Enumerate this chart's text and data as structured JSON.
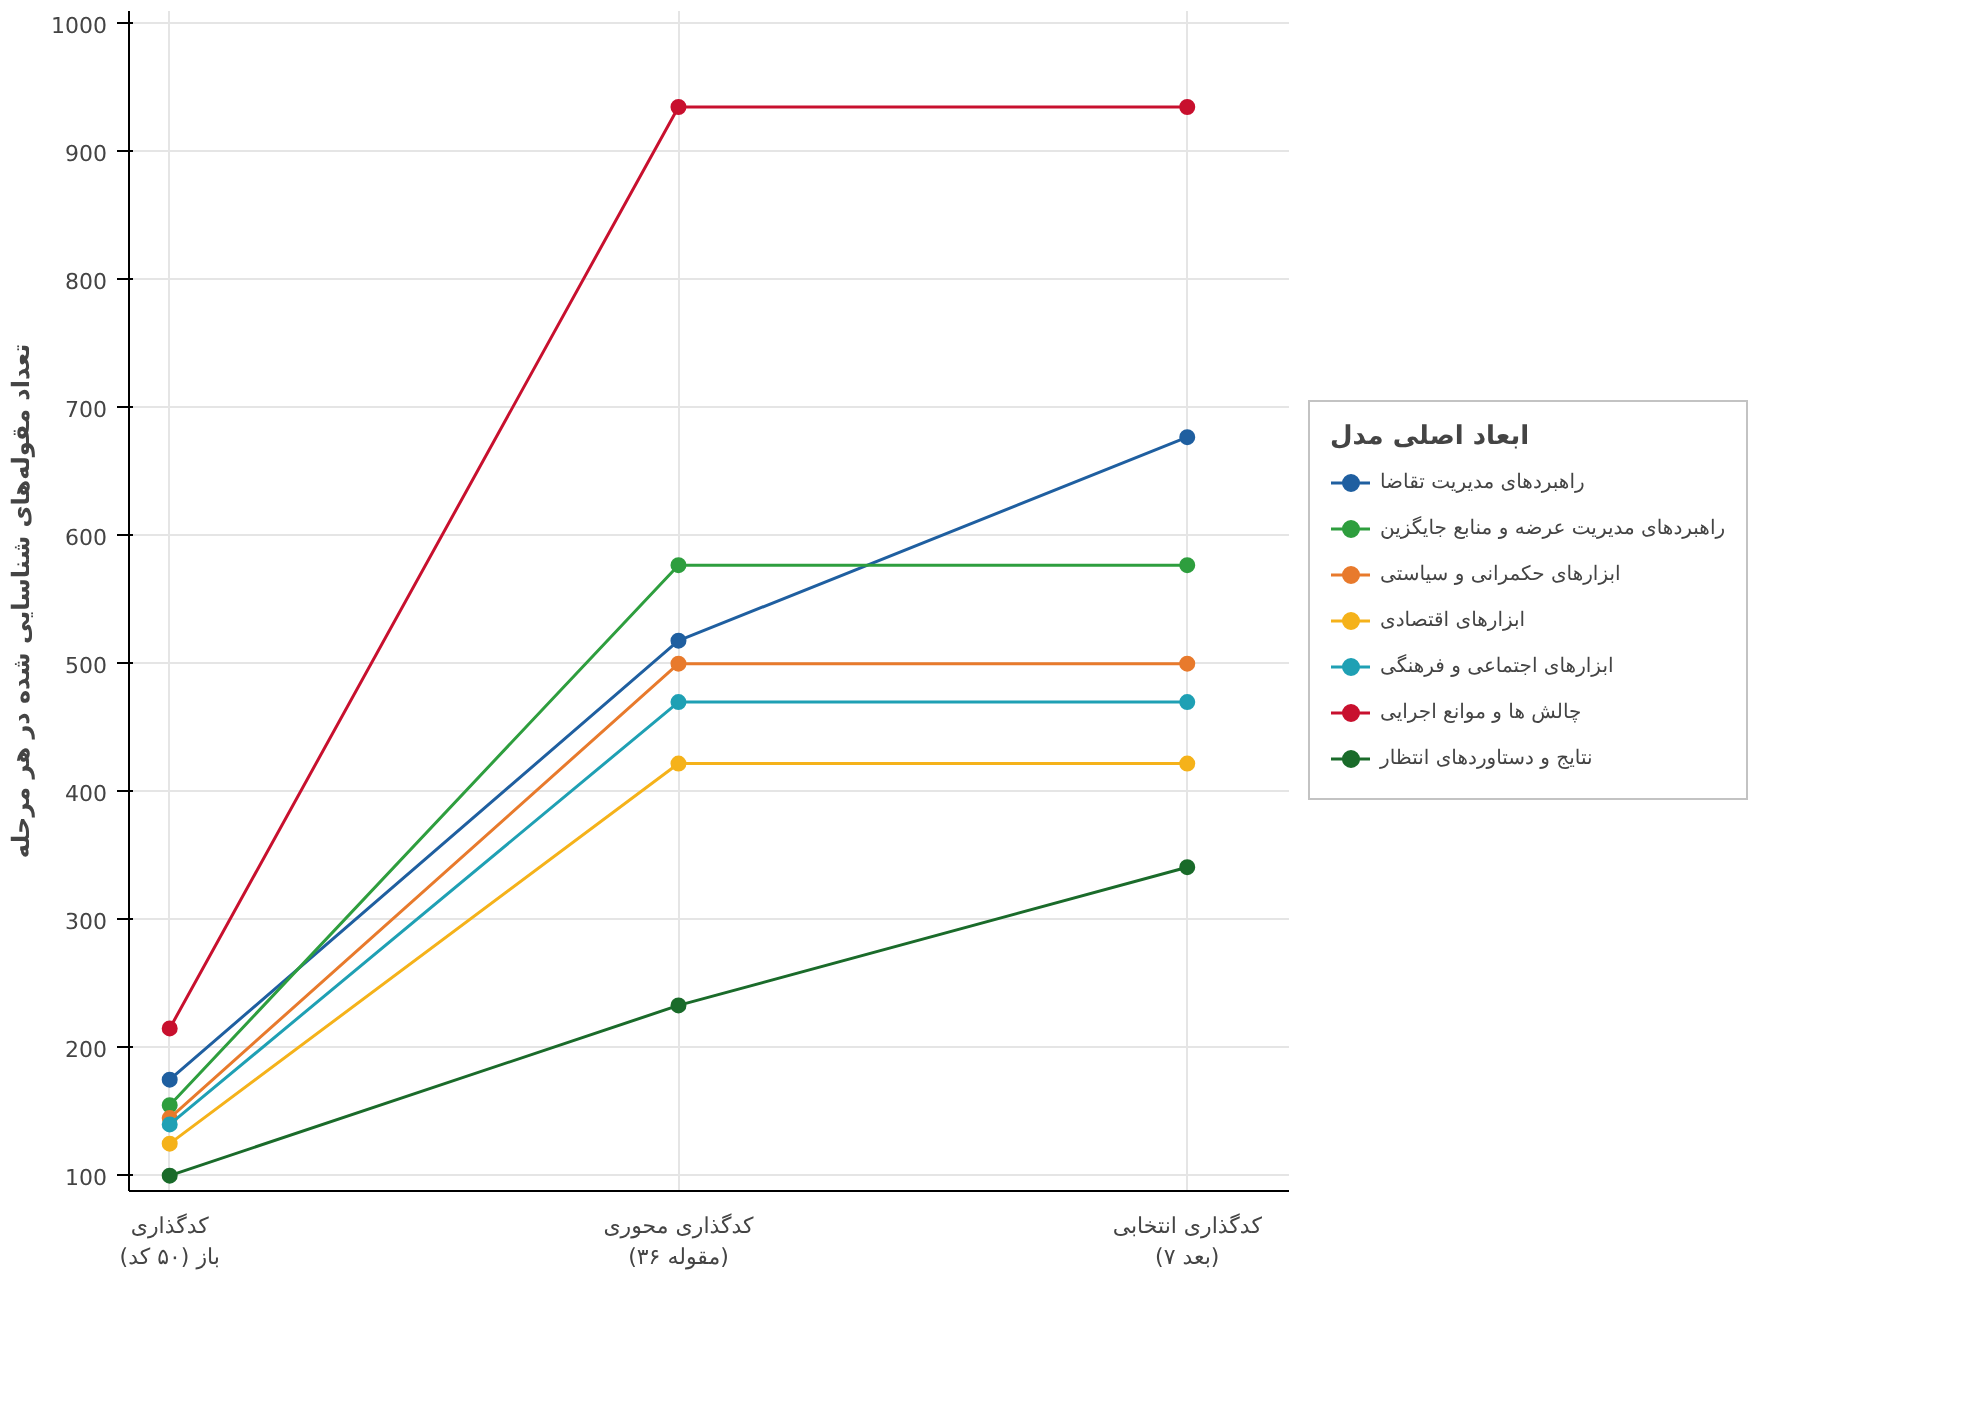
{
  "chart_data": {
    "type": "line",
    "categories": [
      "کدگذاری\nباز (۵۰ کد)",
      "کدگذاری محوری\n(۳۶ مقوله)",
      "کدگذاری انتخابی\n(۷ بعد)"
    ],
    "ylabel": "تعداد مقوله‌های شناسایی شده در هر مرحله",
    "legend_title": "ابعاد اصلی مدل",
    "ylim": [
      88,
      1010
    ],
    "yticks": [
      100,
      200,
      300,
      400,
      500,
      600,
      700,
      800,
      900,
      1000
    ],
    "grid": true,
    "legend": "right",
    "marker": "circle",
    "line_style": "solid",
    "series": [
      {
        "name": "راهبردهای مدیریت تقاضا",
        "color": "#1f5fa0",
        "values": [
          175,
          518,
          677
        ]
      },
      {
        "name": "راهبردهای مدیریت عرضه و منابع جایگزین",
        "color": "#2e9e3e",
        "values": [
          155,
          577,
          577
        ]
      },
      {
        "name": "ابزارهای حکمرانی و سیاستی",
        "color": "#e87a2c",
        "values": [
          145,
          500,
          500
        ]
      },
      {
        "name": "ابزارهای اقتصادی",
        "color": "#f5b21a",
        "values": [
          125,
          422,
          422
        ]
      },
      {
        "name": "ابزارهای اجتماعی و فرهنگی",
        "color": "#1fa0b4",
        "values": [
          140,
          470,
          470
        ]
      },
      {
        "name": "چالش ها و موانع اجرایی",
        "color": "#c8102e",
        "values": [
          215,
          935,
          935
        ]
      },
      {
        "name": "نتایج و دستاوردهای انتظار",
        "color": "#1a6b2a",
        "values": [
          100,
          233,
          341
        ]
      }
    ]
  }
}
